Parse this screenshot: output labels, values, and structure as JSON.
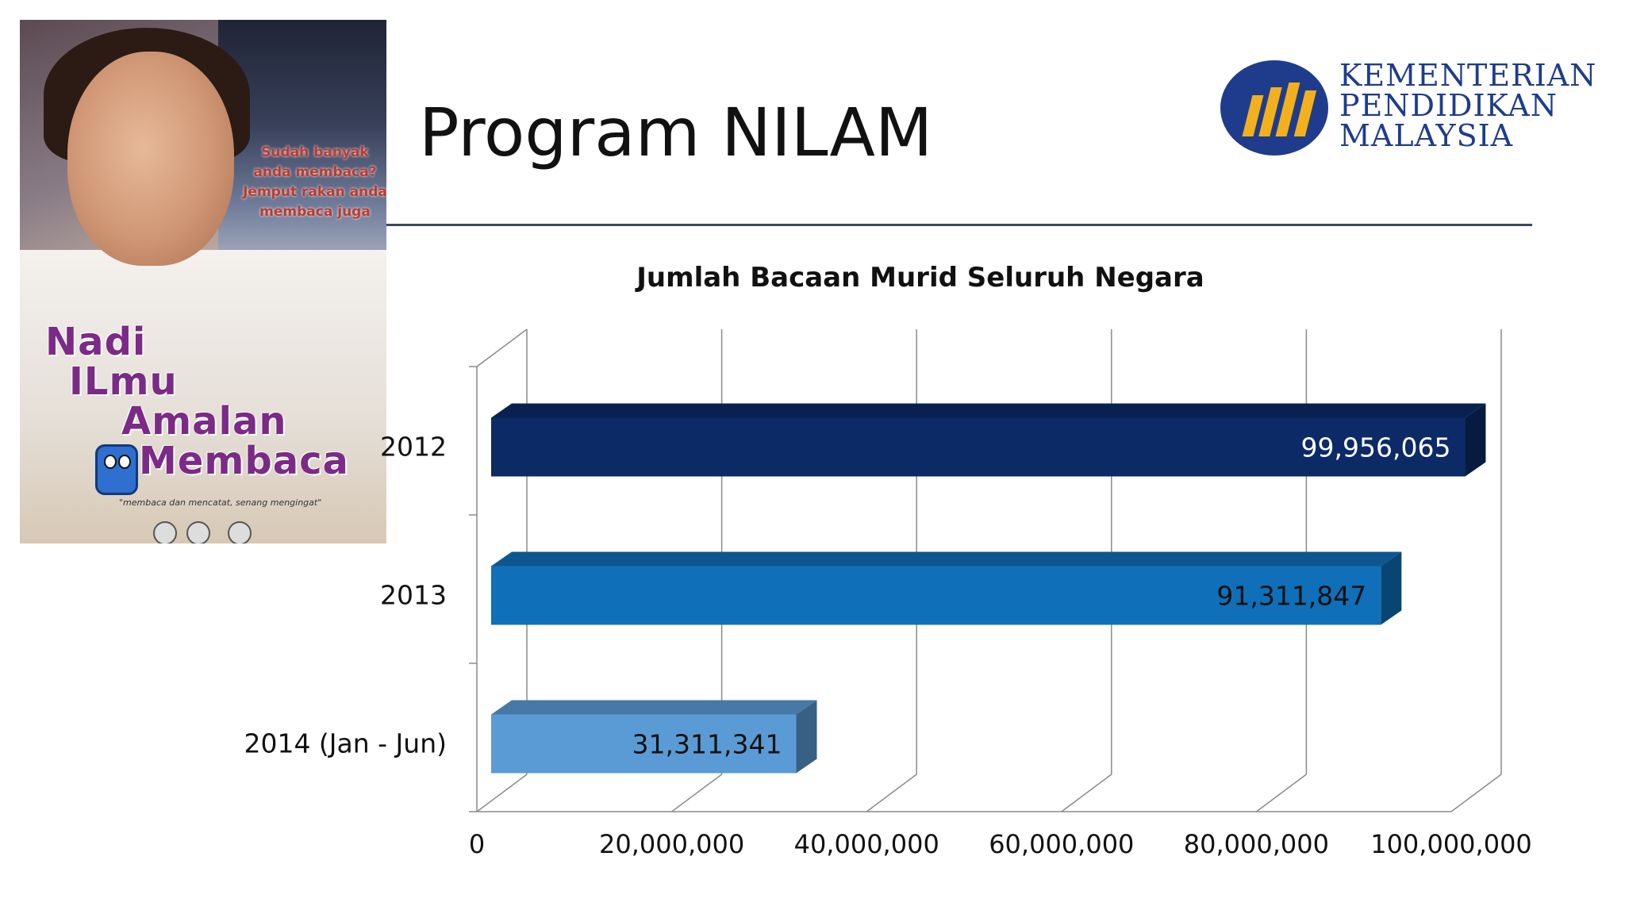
{
  "slide": {
    "title": "Program NILAM"
  },
  "logo": {
    "line1": "KEMENTERIAN",
    "line2": "PENDIDIKAN",
    "line3": "MALAYSIA"
  },
  "poster": {
    "bubble_line1": "Sudah banyak",
    "bubble_line2": "anda membaca?",
    "bubble_line3": "Jemput rakan anda",
    "bubble_line4": "membaca juga",
    "slogan_1": "Nadi",
    "slogan_2": "ILmu",
    "slogan_3": "Amalan",
    "slogan_4": "Membaca",
    "tagline": "\"membaca dan mencatat, senang mengingat\""
  },
  "colors": {
    "bar_2012": "#0c2a66",
    "bar_2013": "#0f6fb8",
    "bar_2014": "#5b9bd5",
    "accent_rule": "#3d4560",
    "logo_blue": "#1f3c8c",
    "logo_gold": "#f2b11c"
  },
  "chart_data": {
    "type": "bar",
    "orientation": "horizontal",
    "style": "3d",
    "title": "Jumlah Bacaan Murid Seluruh Negara",
    "categories": [
      "2012",
      "2013",
      "2014 (Jan - Jun)"
    ],
    "values": [
      99956065,
      91311847,
      31311341
    ],
    "value_labels": [
      "99,956,065",
      "91,311,847",
      "31,311,341"
    ],
    "xlim": [
      0,
      100000000
    ],
    "x_ticks": [
      0,
      20000000,
      40000000,
      60000000,
      80000000,
      100000000
    ],
    "x_tick_labels": [
      "0",
      "20,000,000",
      "40,000,000",
      "60,000,000",
      "80,000,000",
      "100,000,000"
    ],
    "grid": true,
    "legend": "none"
  }
}
